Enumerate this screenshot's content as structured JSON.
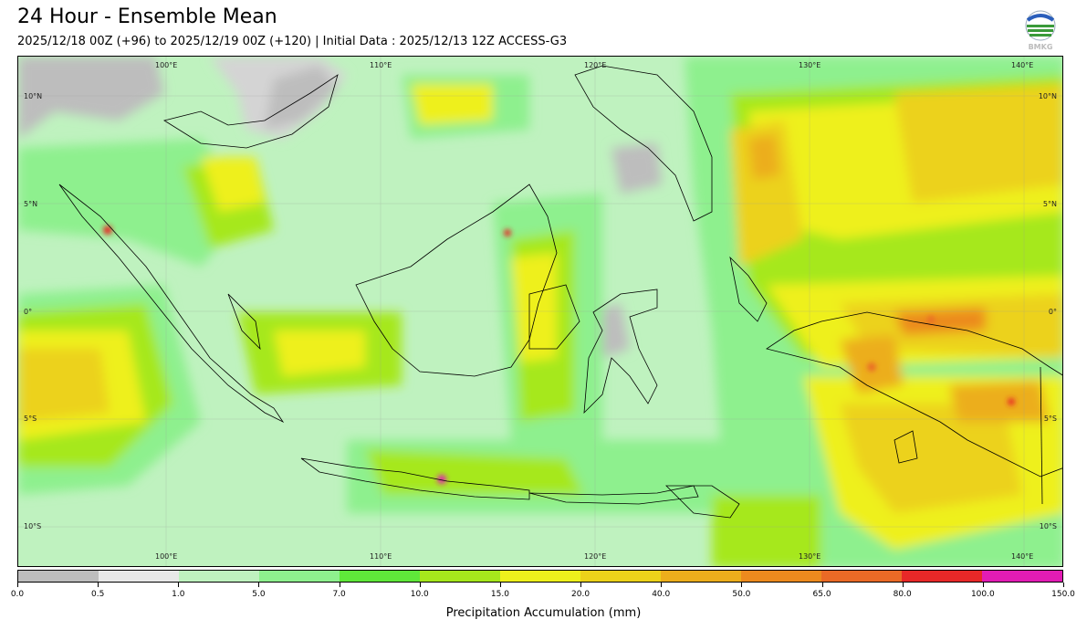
{
  "header": {
    "title": "24 Hour - Ensemble Mean",
    "subtitle": "2025/12/18 00Z (+96) to 2025/12/19 00Z (+120) | Initial Data : 2025/12/13 12Z ACCESS-G3",
    "logo_text": "BMKG"
  },
  "map": {
    "lon_labels_top": [
      "100°E",
      "110°E",
      "120°E",
      "130°E",
      "140°E"
    ],
    "lon_labels_bottom": [
      "100°E",
      "110°E",
      "120°E",
      "130°E",
      "140°E"
    ],
    "lat_labels_left": [
      "10°N",
      "5°N",
      "0°",
      "5°S",
      "10°S"
    ],
    "lat_labels_right": [
      "10°N",
      "5°N",
      "0°",
      "5°S",
      "10°S"
    ]
  },
  "colorbar": {
    "label": "Precipitation Accumulation (mm)",
    "ticks": [
      "0.0",
      "0.5",
      "1.0",
      "5.0",
      "7.0",
      "10.0",
      "15.0",
      "20.0",
      "40.0",
      "50.0",
      "65.0",
      "80.0",
      "100.0",
      "150.0"
    ],
    "colors": [
      "#bdbdbd",
      "#e8e8e8",
      "#bff2bf",
      "#8ef08e",
      "#5fe83a",
      "#a6e81c",
      "#eef01c",
      "#ecd21a",
      "#ecae1c",
      "#ec8a1e",
      "#ea6a26",
      "#e82828",
      "#e21cb4"
    ]
  }
}
